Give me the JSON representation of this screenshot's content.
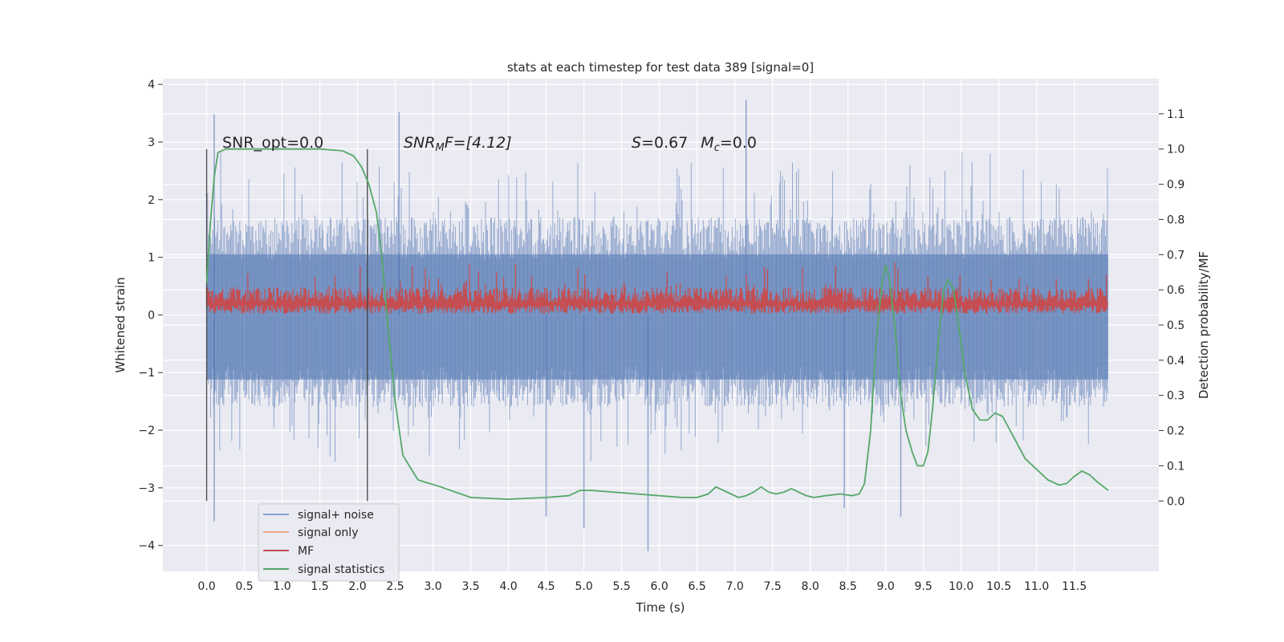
{
  "chart_data": {
    "type": "line",
    "title": "stats at each timestep for test data 389 [signal=0]",
    "xlabel": "Time (s)",
    "ylabel_left": "Whitened strain",
    "ylabel_right": "Detection probability/MF",
    "xlim": [
      -0.58,
      12.62
    ],
    "ylim_left": [
      -4.45,
      4.1
    ],
    "ylim_right": [
      -0.2,
      1.2
    ],
    "xticks": [
      "0.0",
      "0.5",
      "1.0",
      "1.5",
      "2.0",
      "2.5",
      "3.0",
      "3.5",
      "4.0",
      "4.5",
      "5.0",
      "5.5",
      "6.0",
      "6.5",
      "7.0",
      "7.5",
      "8.0",
      "8.5",
      "9.0",
      "9.5",
      "10.0",
      "10.5",
      "11.0",
      "11.5"
    ],
    "yticks_left": [
      "4",
      "3",
      "2",
      "1",
      "0",
      "−1",
      "−2",
      "−3",
      "−4"
    ],
    "yticks_right": [
      "1.1",
      "1.0",
      "0.9",
      "0.8",
      "0.7",
      "0.6",
      "0.5",
      "0.4",
      "0.3",
      "0.2",
      "0.1",
      "0.0"
    ],
    "grid": true,
    "legend_position": "lower-left",
    "background": "#eaeaf2",
    "annotations": {
      "snr_opt": "SNR_opt=0.0",
      "snr_mf_label": "SNR",
      "snr_mf_sub": "M",
      "snr_mf_rest": "F=[4.12]",
      "s_label": "S",
      "s_value": "=0.67",
      "mc_label": "M",
      "mc_sub": "c",
      "mc_value": "=0.0"
    },
    "vertical_markers_x": [
      0.0,
      2.13
    ],
    "series": [
      {
        "name": "signal+ noise",
        "axis": "left",
        "color": "#4c72b0",
        "alpha": 0.5,
        "t_range": [
          0.0,
          11.95
        ],
        "envelope_upper": 1.7,
        "envelope_lower": -1.6,
        "extremes": [
          [
            0.1,
            3.48
          ],
          [
            0.1,
            -3.58
          ],
          [
            2.55,
            3.52
          ],
          [
            7.15,
            3.73
          ],
          [
            5.85,
            -4.1
          ],
          [
            5.0,
            -3.7
          ],
          [
            9.2,
            -3.5
          ],
          [
            4.5,
            -3.5
          ],
          [
            8.45,
            -3.35
          ]
        ]
      },
      {
        "name": "signal only",
        "axis": "left",
        "color": "#dd8452",
        "values_note": "flat at 0",
        "level": 0.0
      },
      {
        "name": "MF",
        "axis": "left",
        "color": "#c44e52",
        "t_range": [
          0.0,
          11.95
        ],
        "baseline": 0.02,
        "typical_top": 0.48,
        "peak": 0.98
      },
      {
        "name": "signal statistics",
        "axis": "right",
        "color": "#55a868",
        "x": [
          0.0,
          0.05,
          0.1,
          0.15,
          0.25,
          0.5,
          1.0,
          1.5,
          1.8,
          1.95,
          2.05,
          2.15,
          2.25,
          2.32,
          2.4,
          2.5,
          2.6,
          2.8,
          3.1,
          3.5,
          4.0,
          4.5,
          4.8,
          4.95,
          5.1,
          5.4,
          5.7,
          6.0,
          6.3,
          6.5,
          6.65,
          6.75,
          6.85,
          6.95,
          7.05,
          7.15,
          7.25,
          7.35,
          7.45,
          7.55,
          7.65,
          7.75,
          7.85,
          7.95,
          8.05,
          8.2,
          8.4,
          8.55,
          8.65,
          8.72,
          8.8,
          8.87,
          8.95,
          9.0,
          9.05,
          9.12,
          9.2,
          9.27,
          9.35,
          9.42,
          9.5,
          9.56,
          9.62,
          9.7,
          9.77,
          9.83,
          9.9,
          9.98,
          10.05,
          10.15,
          10.25,
          10.35,
          10.45,
          10.55,
          10.7,
          10.85,
          11.0,
          11.15,
          11.3,
          11.4,
          11.5,
          11.6,
          11.7,
          11.8,
          11.95
        ],
        "y": [
          0.62,
          0.79,
          0.92,
          0.99,
          1.0,
          1.0,
          1.0,
          1.0,
          0.995,
          0.98,
          0.95,
          0.9,
          0.82,
          0.7,
          0.5,
          0.28,
          0.13,
          0.06,
          0.04,
          0.01,
          0.005,
          0.01,
          0.015,
          0.03,
          0.03,
          0.025,
          0.02,
          0.015,
          0.01,
          0.01,
          0.02,
          0.04,
          0.03,
          0.02,
          0.01,
          0.015,
          0.025,
          0.04,
          0.025,
          0.02,
          0.025,
          0.035,
          0.025,
          0.015,
          0.01,
          0.015,
          0.02,
          0.015,
          0.02,
          0.05,
          0.2,
          0.44,
          0.62,
          0.67,
          0.63,
          0.5,
          0.3,
          0.2,
          0.14,
          0.1,
          0.1,
          0.14,
          0.26,
          0.46,
          0.6,
          0.63,
          0.6,
          0.48,
          0.36,
          0.26,
          0.23,
          0.23,
          0.25,
          0.24,
          0.18,
          0.12,
          0.09,
          0.06,
          0.045,
          0.05,
          0.07,
          0.085,
          0.075,
          0.055,
          0.03
        ]
      }
    ]
  },
  "legend": {
    "items": [
      {
        "label": "signal+ noise",
        "color": "#8ba1cb"
      },
      {
        "label": "signal only",
        "color": "#eea98b"
      },
      {
        "label": "MF",
        "color": "#c44e52"
      },
      {
        "label": "signal statistics",
        "color": "#55a868"
      }
    ]
  }
}
